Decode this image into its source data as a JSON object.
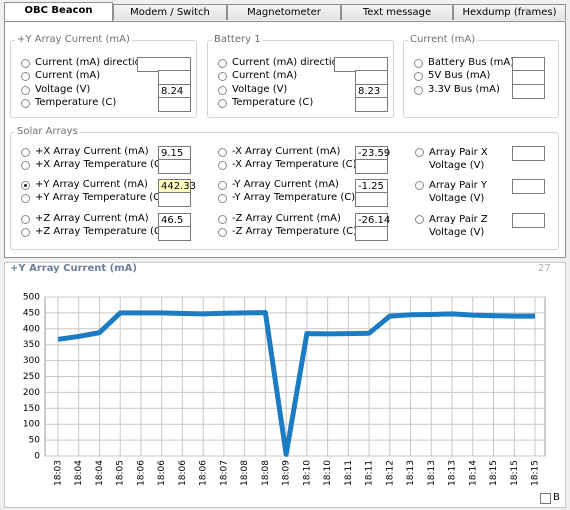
{
  "tabs": [
    "OBC Beacon",
    "Modem / Switch",
    "Magnetometer",
    "Text message",
    "Hexdump (frames)"
  ],
  "active_tab": 0,
  "groups": [
    {
      "title": "+Y Array Current (mA)",
      "fields": [
        {
          "label": "Current (mA) direction"
        },
        {
          "label": "Current (mA)"
        },
        {
          "label": "Voltage (V)",
          "value": "8.24"
        },
        {
          "label": "Temperature (C)"
        }
      ]
    },
    {
      "title": "Battery 1",
      "fields": [
        {
          "label": "Current (mA) direction"
        },
        {
          "label": "Current (mA)"
        },
        {
          "label": "Voltage (V)",
          "value": "8.23"
        },
        {
          "label": "Temperature (C)"
        }
      ]
    },
    {
      "title": "Current (mA)",
      "fields": [
        {
          "label": "Battery Bus (mA)"
        },
        {
          "label": "5V Bus (mA)"
        },
        {
          "label": "3.3V Bus (mA)"
        }
      ]
    }
  ],
  "solar_arrays": {
    "title": "Solar Arrays",
    "columns": [
      [
        {
          "label": "+X Array Current (mA)",
          "value": "9.15"
        },
        {
          "label": "+X Array Temperature (C)"
        },
        {
          "label": "+Y Array Current (mA)",
          "value": "442.33",
          "selected": true
        },
        {
          "label": "+Y Array Temperature (C)"
        },
        {
          "label": "+Z Array Current (mA)",
          "value": "46.5"
        },
        {
          "label": "+Z Array Temperature (C)"
        }
      ],
      [
        {
          "label": "-X Array Current (mA)",
          "value": "-23.59"
        },
        {
          "label": "-X Array Temperature (C)"
        },
        {
          "label": "-Y Array Current (mA)",
          "value": "-1.25"
        },
        {
          "label": "-Y Array Temperature (C)"
        },
        {
          "label": "-Z Array Current (mA)",
          "value": "-26.14"
        },
        {
          "label": "-Z Array Temperature (C)"
        }
      ],
      [
        {
          "label": "Array Pair X Voltage (V)"
        },
        {
          "label": "Array Pair Y Voltage (V)"
        },
        {
          "label": "Array Pair Z Voltage (V)"
        }
      ]
    ]
  },
  "chart_panel": {
    "title": "+Y Array Current (mA)",
    "count": "27",
    "checkbox_label": "B",
    "chart_data": {
      "type": "line",
      "categories": [
        "18:03",
        "18:04",
        "18:04",
        "18:05",
        "18:06",
        "18:06",
        "18:06",
        "18:06",
        "18:07",
        "18:08",
        "18:08",
        "18:09",
        "18:10",
        "18:10",
        "18:11",
        "18:11",
        "18:12",
        "18:13",
        "18:13",
        "18:13",
        "18:14",
        "18:15",
        "18:15",
        "18:15"
      ],
      "values": [
        367,
        376,
        388,
        450,
        450,
        450,
        448,
        447,
        449,
        450,
        451,
        5,
        385,
        384,
        385,
        386,
        440,
        444,
        445,
        447,
        443,
        441,
        440,
        440
      ],
      "color": "#1b7cc4",
      "ylim": [
        0,
        500
      ],
      "yticks": [
        0,
        50,
        100,
        150,
        200,
        250,
        300,
        350,
        400,
        450,
        500
      ],
      "grid": true
    }
  }
}
